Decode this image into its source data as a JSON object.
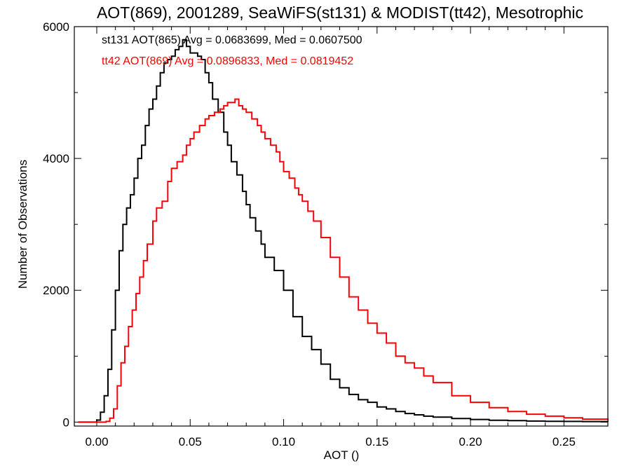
{
  "chart_data": {
    "type": "line",
    "title": "AOT(869), 2001289, SeaWiFS(st131) & MODIST(tt42), Mesotrophic",
    "xlabel": "AOT ()",
    "ylabel": "Number of Observations",
    "xlim": [
      -0.012,
      0.2735
    ],
    "ylim": [
      -60,
      6000
    ],
    "xticks": [
      {
        "value": 0.0,
        "label": "0.00"
      },
      {
        "value": 0.05,
        "label": "0.05"
      },
      {
        "value": 0.1,
        "label": "0.10"
      },
      {
        "value": 0.15,
        "label": "0.15"
      },
      {
        "value": 0.2,
        "label": "0.20"
      },
      {
        "value": 0.25,
        "label": "0.25"
      }
    ],
    "yticks": [
      {
        "value": 0,
        "label": "0"
      },
      {
        "value": 2000,
        "label": "2000"
      },
      {
        "value": 4000,
        "label": "4000"
      },
      {
        "value": 6000,
        "label": "6000"
      }
    ],
    "grid": false,
    "step": "histogram",
    "series": [
      {
        "name": "st131 AOT(865) Avg = 0.0683699, Med = 0.0607500",
        "color": "#000000",
        "x": [
          -0.01,
          -0.002,
          0.0,
          0.002,
          0.004,
          0.006,
          0.008,
          0.01,
          0.012,
          0.014,
          0.016,
          0.018,
          0.02,
          0.022,
          0.024,
          0.026,
          0.028,
          0.03,
          0.032,
          0.034,
          0.036,
          0.038,
          0.04,
          0.042,
          0.044,
          0.046,
          0.048,
          0.05,
          0.052,
          0.054,
          0.056,
          0.058,
          0.06,
          0.062,
          0.065,
          0.068,
          0.07,
          0.072,
          0.075,
          0.078,
          0.08,
          0.082,
          0.085,
          0.088,
          0.09,
          0.095,
          0.1,
          0.105,
          0.11,
          0.115,
          0.12,
          0.125,
          0.13,
          0.135,
          0.14,
          0.145,
          0.15,
          0.155,
          0.16,
          0.165,
          0.17,
          0.175,
          0.18,
          0.19,
          0.2,
          0.21,
          0.22,
          0.23,
          0.24,
          0.25,
          0.26,
          0.2735
        ],
        "values": [
          0,
          0,
          30,
          150,
          400,
          800,
          1400,
          2000,
          2600,
          3000,
          3250,
          3450,
          3700,
          4000,
          4200,
          4500,
          4750,
          4900,
          5100,
          5300,
          5450,
          5500,
          5550,
          5650,
          5700,
          5800,
          5700,
          5600,
          5600,
          5550,
          5500,
          5300,
          5150,
          4900,
          4700,
          4400,
          4200,
          3950,
          3750,
          3500,
          3300,
          3100,
          2900,
          2700,
          2500,
          2300,
          2000,
          1600,
          1300,
          1100,
          880,
          650,
          520,
          420,
          340,
          300,
          230,
          200,
          160,
          130,
          110,
          90,
          75,
          55,
          40,
          28,
          22,
          16,
          12,
          10,
          8,
          5
        ]
      },
      {
        "name": "tt42 AOT(869) Avg = 0.0896833, Med = 0.0819452",
        "color": "#ff0000",
        "x": [
          -0.01,
          0.0,
          0.005,
          0.007,
          0.009,
          0.011,
          0.013,
          0.015,
          0.017,
          0.019,
          0.021,
          0.023,
          0.025,
          0.027,
          0.03,
          0.032,
          0.035,
          0.038,
          0.04,
          0.043,
          0.046,
          0.048,
          0.05,
          0.052,
          0.055,
          0.058,
          0.06,
          0.063,
          0.066,
          0.068,
          0.07,
          0.072,
          0.074,
          0.076,
          0.078,
          0.08,
          0.083,
          0.086,
          0.088,
          0.09,
          0.093,
          0.096,
          0.098,
          0.1,
          0.103,
          0.106,
          0.108,
          0.11,
          0.113,
          0.116,
          0.12,
          0.125,
          0.13,
          0.135,
          0.14,
          0.145,
          0.15,
          0.155,
          0.16,
          0.165,
          0.17,
          0.175,
          0.18,
          0.19,
          0.2,
          0.21,
          0.22,
          0.23,
          0.24,
          0.25,
          0.26,
          0.2735
        ],
        "values": [
          0,
          0,
          10,
          60,
          200,
          550,
          900,
          1150,
          1450,
          1700,
          1950,
          2200,
          2450,
          2700,
          3050,
          3250,
          3350,
          3650,
          3850,
          3950,
          4050,
          4200,
          4300,
          4400,
          4500,
          4600,
          4650,
          4700,
          4750,
          4800,
          4850,
          4850,
          4900,
          4800,
          4750,
          4700,
          4600,
          4500,
          4400,
          4300,
          4200,
          4100,
          3950,
          3800,
          3700,
          3550,
          3450,
          3350,
          3200,
          3050,
          2800,
          2500,
          2200,
          1900,
          1700,
          1500,
          1350,
          1200,
          1000,
          900,
          820,
          700,
          600,
          400,
          300,
          220,
          160,
          120,
          90,
          65,
          45,
          30
        ]
      }
    ]
  }
}
